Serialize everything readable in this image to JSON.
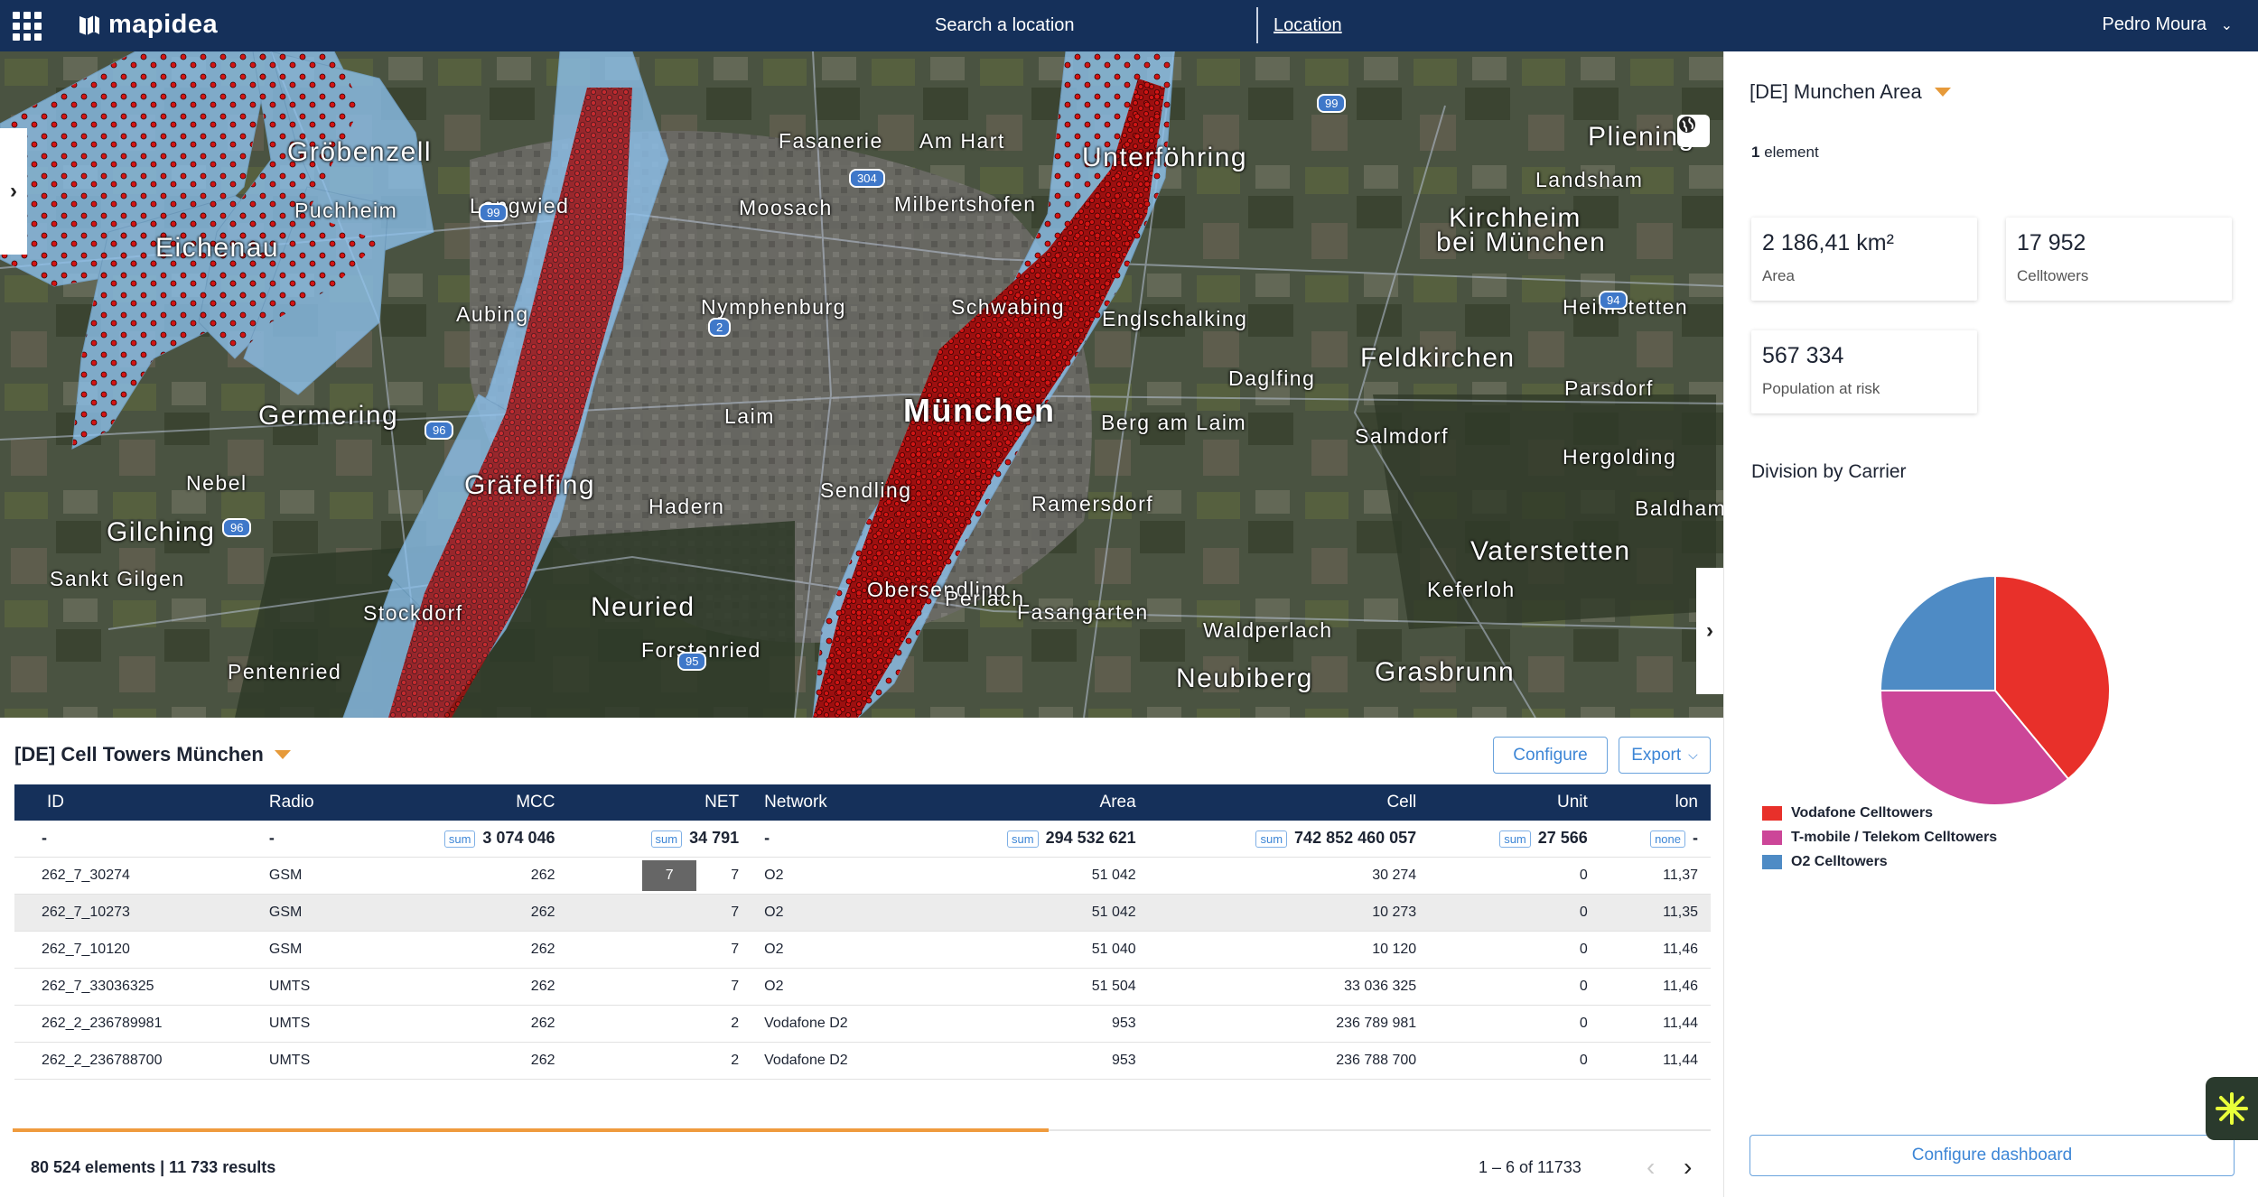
{
  "topbar": {
    "logo": "mapidea",
    "search_label": "Search a location",
    "location_link": "Location",
    "user_name": "Pedro Moura"
  },
  "map": {
    "labels": [
      {
        "text": "Fasanerie",
        "cls": ""
      },
      {
        "text": "Am Hart",
        "cls": ""
      },
      {
        "text": "Unterföhring",
        "cls": "lg"
      },
      {
        "text": "Pliening",
        "cls": "lg"
      },
      {
        "text": "Gröbenzell",
        "cls": "lg"
      },
      {
        "text": "Langwied",
        "cls": ""
      },
      {
        "text": "Moosach",
        "cls": ""
      },
      {
        "text": "Milbertshofen",
        "cls": ""
      },
      {
        "text": "Landsham",
        "cls": ""
      },
      {
        "text": "Puchheim",
        "cls": ""
      },
      {
        "text": "Kirchheim",
        "cls": "lg"
      },
      {
        "text": "bei München",
        "cls": "lg"
      },
      {
        "text": "Eichenau",
        "cls": "lg"
      },
      {
        "text": "Aubing",
        "cls": ""
      },
      {
        "text": "Nymphenburg",
        "cls": ""
      },
      {
        "text": "Schwabing",
        "cls": ""
      },
      {
        "text": "Englschalking",
        "cls": ""
      },
      {
        "text": "Heimstetten",
        "cls": ""
      },
      {
        "text": "Feldkirchen",
        "cls": "lg"
      },
      {
        "text": "Germering",
        "cls": "lg"
      },
      {
        "text": "Laim",
        "cls": ""
      },
      {
        "text": "München",
        "cls": "big"
      },
      {
        "text": "Daglfing",
        "cls": ""
      },
      {
        "text": "Parsdorf",
        "cls": ""
      },
      {
        "text": "Salmdorf",
        "cls": ""
      },
      {
        "text": "Berg am Laim",
        "cls": ""
      },
      {
        "text": "Nebel",
        "cls": ""
      },
      {
        "text": "Gräfelfing",
        "cls": "lg"
      },
      {
        "text": "Hadern",
        "cls": ""
      },
      {
        "text": "Sendling",
        "cls": ""
      },
      {
        "text": "Ramersdorf",
        "cls": ""
      },
      {
        "text": "Hergolding",
        "cls": ""
      },
      {
        "text": "Baldham",
        "cls": ""
      },
      {
        "text": "Gilching",
        "cls": "lg"
      },
      {
        "text": "Vaterstetten",
        "cls": "lg"
      },
      {
        "text": "Neuried",
        "cls": "lg"
      },
      {
        "text": "Keferloh",
        "cls": ""
      },
      {
        "text": "Fasangarten",
        "cls": ""
      },
      {
        "text": "Forstenried",
        "cls": ""
      },
      {
        "text": "Waldperlach",
        "cls": ""
      },
      {
        "text": "Pentenried",
        "cls": ""
      },
      {
        "text": "Neubiberg",
        "cls": "lg"
      },
      {
        "text": "Grasbrunn",
        "cls": "lg"
      },
      {
        "text": "Stockdorf",
        "cls": ""
      },
      {
        "text": "Sankt Gilgen",
        "cls": ""
      },
      {
        "text": "Obersendling",
        "cls": ""
      },
      {
        "text": "Perlach",
        "cls": ""
      }
    ],
    "shields": [
      "99",
      "99",
      "304",
      "2",
      "96",
      "96",
      "94",
      "95"
    ],
    "collapse_icon": "chevron-down-icon"
  },
  "table": {
    "title": "[DE] Cell Towers München",
    "configure_label": "Configure",
    "export_label": "Export",
    "columns": [
      "ID",
      "Radio",
      "MCC",
      "NET",
      "Network",
      "Area",
      "Cell",
      "Unit",
      "lon"
    ],
    "summary": {
      "id": "-",
      "radio": "-",
      "mcc_tag": "sum",
      "mcc": "3 074 046",
      "net_tag": "sum",
      "net": "34 791",
      "network": "-",
      "area_tag": "sum",
      "area": "294 532 621",
      "cell_tag": "sum",
      "cell": "742 852 460 057",
      "unit_tag": "sum",
      "unit": "27 566",
      "lon_tag": "none",
      "lon": "-"
    },
    "net_badge": "7",
    "rows": [
      [
        "262_7_30274",
        "GSM",
        "262",
        "7",
        "O2",
        "51 042",
        "30 274",
        "0",
        "11,37"
      ],
      [
        "262_7_10273",
        "GSM",
        "262",
        "7",
        "O2",
        "51 042",
        "10 273",
        "0",
        "11,35"
      ],
      [
        "262_7_10120",
        "GSM",
        "262",
        "7",
        "O2",
        "51 040",
        "10 120",
        "0",
        "11,46"
      ],
      [
        "262_7_33036325",
        "UMTS",
        "262",
        "7",
        "O2",
        "51 504",
        "33 036 325",
        "0",
        "11,46"
      ],
      [
        "262_2_236789981",
        "UMTS",
        "262",
        "2",
        "Vodafone D2",
        "953",
        "236 789 981",
        "0",
        "11,44"
      ],
      [
        "262_2_236788700",
        "UMTS",
        "262",
        "2",
        "Vodafone D2",
        "953",
        "236 788 700",
        "0",
        "11,44"
      ]
    ],
    "progress_fraction": 0.61,
    "footer": "80 524 elements | 11 733 results",
    "pagination": "1 – 6 of 11733"
  },
  "panel": {
    "title": "[DE] Munchen Area",
    "element_count": "1",
    "element_label": "element",
    "cards": [
      {
        "value": "2 186,41 km²",
        "label": "Area"
      },
      {
        "value": "17 952",
        "label": "Celltowers"
      },
      {
        "value": "567 334",
        "label": "Population at risk"
      }
    ],
    "division_title": "Division by Carrier",
    "configure_dashboard": "Configure dashboard"
  },
  "chart_data": {
    "type": "pie",
    "title": "Division by Carrier",
    "series": [
      {
        "name": "Vodafone Celltowers",
        "value": 39,
        "color": "#e8302a"
      },
      {
        "name": "T-mobile / Telekom Celltowers",
        "value": 36,
        "color": "#cc4698"
      },
      {
        "name": "O2 Celltowers",
        "value": 25,
        "color": "#4e8bc5"
      }
    ],
    "legend": "bottom-left"
  },
  "colors": {
    "topbar": "#15305a",
    "accent": "#e69a3a",
    "link": "#3d86d6",
    "coverage": "#8ec3ef",
    "tower": "#c40f0f"
  }
}
